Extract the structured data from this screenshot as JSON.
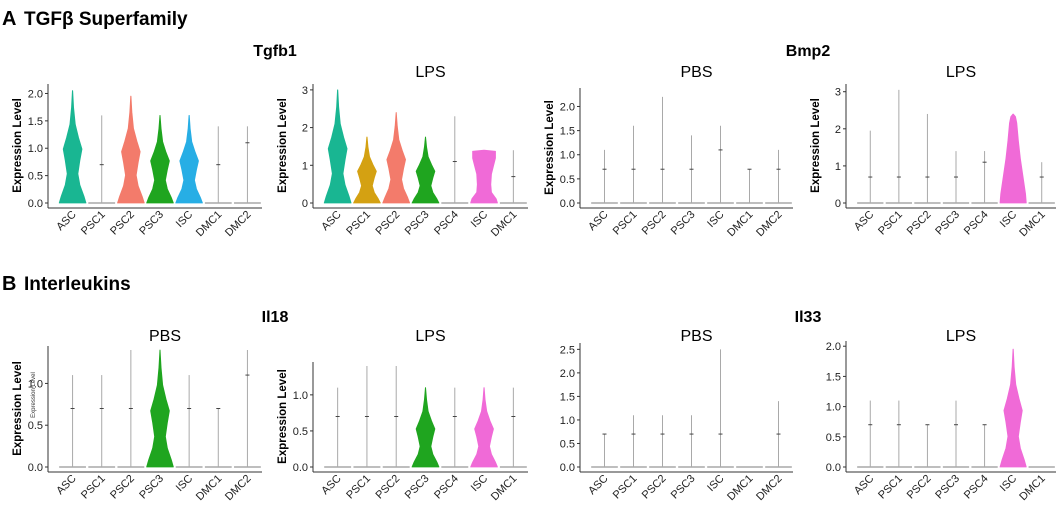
{
  "sections": [
    {
      "letter": "A",
      "title": "TGFβ Superfamily"
    },
    {
      "letter": "B",
      "title": "Interleukins"
    }
  ],
  "genes": [
    "Tgfb1",
    "Bmp2",
    "Il18",
    "Il33"
  ],
  "ylabel": "Expression Level",
  "ylabel_small": "Expression Level",
  "chart_data": [
    {
      "type": "violin",
      "gene": "Tgfb1",
      "title": "",
      "ylabel": "Expression Level",
      "ylim": [
        0,
        2.1
      ],
      "yticks": [
        "0.0",
        "0.5",
        "1.0",
        "1.5",
        "2.0"
      ],
      "ytick_values": [
        0,
        0.5,
        1,
        1.5,
        2
      ],
      "categories": [
        "ASC",
        "PSC1",
        "PSC2",
        "PSC3",
        "ISC",
        "DMC1",
        "DMC2"
      ],
      "colors": [
        "#19b692",
        "#b0b0b0",
        "#f37b6b",
        "#1fa51f",
        "#27aee5",
        "#b0b0b0",
        "#b0b0b0"
      ],
      "max": [
        2.05,
        1.6,
        1.95,
        1.6,
        1.6,
        1.4,
        1.4
      ],
      "median": [
        0.8,
        0.7,
        0.7,
        0.7,
        0.7,
        0.7,
        1.1
      ],
      "shape": [
        "full",
        "line",
        "full",
        "full",
        "full",
        "line",
        "line"
      ]
    },
    {
      "type": "violin",
      "gene": "Tgfb1",
      "title": "LPS",
      "ylabel": "Expression Level",
      "ylim": [
        0,
        3.05
      ],
      "yticks": [
        "0",
        "1",
        "2",
        "3"
      ],
      "ytick_values": [
        0,
        1,
        2,
        3
      ],
      "categories": [
        "ASC",
        "PSC1",
        "PSC2",
        "PSC3",
        "PSC4",
        "ISC",
        "DMC1"
      ],
      "colors": [
        "#19b692",
        "#d4a112",
        "#f37b6b",
        "#1fa51f",
        "#b0b0b0",
        "#f06ad7",
        "#b0b0b0"
      ],
      "max": [
        3.0,
        1.75,
        2.4,
        1.75,
        2.3,
        1.4,
        1.4
      ],
      "median": [
        1.0,
        0.7,
        0.8,
        0.7,
        1.1,
        0.7,
        0.7
      ],
      "shape": [
        "full",
        "full",
        "full",
        "full",
        "line",
        "block",
        "line"
      ]
    },
    {
      "type": "violin",
      "gene": "Bmp2",
      "title": "PBS",
      "ylabel": "Expression Level",
      "ylim": [
        0,
        2.3
      ],
      "yticks": [
        "0.0",
        "0.5",
        "1.0",
        "1.5",
        "2.0"
      ],
      "ytick_values": [
        0,
        0.5,
        1,
        1.5,
        2
      ],
      "categories": [
        "ASC",
        "PSC1",
        "PSC2",
        "PSC3",
        "ISC",
        "DMC1",
        "DMC2"
      ],
      "colors": [
        "#b0b0b0",
        "#b0b0b0",
        "#b0b0b0",
        "#b0b0b0",
        "#b0b0b0",
        "#b0b0b0",
        "#b0b0b0"
      ],
      "max": [
        1.1,
        1.6,
        2.2,
        1.4,
        1.6,
        0.7,
        1.1
      ],
      "median": [
        0.7,
        0.7,
        0.7,
        0.7,
        1.1,
        0.7,
        0.7
      ],
      "shape": [
        "line",
        "line",
        "line",
        "line",
        "line",
        "line",
        "line"
      ]
    },
    {
      "type": "violin",
      "gene": "Bmp2",
      "title": "LPS",
      "ylabel": "Expression Level",
      "ylim": [
        0,
        3.1
      ],
      "yticks": [
        "0",
        "1",
        "2",
        "3"
      ],
      "ytick_values": [
        0,
        1,
        2,
        3
      ],
      "categories": [
        "ASC",
        "PSC1",
        "PSC2",
        "PSC3",
        "PSC4",
        "ISC",
        "DMC1"
      ],
      "colors": [
        "#b0b0b0",
        "#b0b0b0",
        "#b0b0b0",
        "#b0b0b0",
        "#b0b0b0",
        "#f06ad7",
        "#b0b0b0"
      ],
      "max": [
        1.95,
        3.05,
        2.4,
        1.4,
        1.4,
        2.4,
        1.1
      ],
      "median": [
        0.7,
        0.7,
        0.7,
        0.7,
        1.1,
        0.7,
        0.7
      ],
      "shape": [
        "line",
        "line",
        "line",
        "line",
        "line",
        "hump",
        "line"
      ]
    },
    {
      "type": "violin",
      "gene": "Il18",
      "title": "PBS",
      "ylabel": "Expression Level",
      "ylim": [
        0,
        1.4
      ],
      "yticks": [
        "0.0",
        "0.5",
        "1.0"
      ],
      "ytick_values": [
        0,
        0.5,
        1
      ],
      "categories": [
        "ASC",
        "PSC1",
        "PSC2",
        "PSC3",
        "ISC",
        "DMC1",
        "DMC2"
      ],
      "colors": [
        "#b0b0b0",
        "#b0b0b0",
        "#b0b0b0",
        "#1fa51f",
        "#b0b0b0",
        "#b0b0b0",
        "#b0b0b0"
      ],
      "max": [
        1.1,
        1.1,
        1.4,
        1.4,
        1.1,
        0.7,
        1.4
      ],
      "median": [
        0.7,
        0.7,
        0.7,
        0.7,
        0.7,
        0.7,
        1.1
      ],
      "shape": [
        "line",
        "line",
        "line",
        "full",
        "line",
        "line",
        "line"
      ]
    },
    {
      "type": "violin",
      "gene": "Il18",
      "title": "LPS",
      "ylabel": "Expression Level",
      "ylim": [
        0,
        1.4
      ],
      "yticks": [
        "0.0",
        "0.5",
        "1.0"
      ],
      "ytick_values": [
        0,
        0.5,
        1
      ],
      "categories": [
        "ASC",
        "PSC1",
        "PSC2",
        "PSC3",
        "PSC4",
        "ISC",
        "DMC1"
      ],
      "colors": [
        "#b0b0b0",
        "#b0b0b0",
        "#b0b0b0",
        "#1fa51f",
        "#b0b0b0",
        "#f06ad7",
        "#b0b0b0"
      ],
      "max": [
        1.1,
        1.4,
        1.4,
        1.1,
        1.1,
        1.1,
        1.1
      ],
      "median": [
        0.7,
        0.7,
        0.7,
        0.7,
        0.7,
        0.7,
        0.7
      ],
      "shape": [
        "line",
        "line",
        "line",
        "full",
        "line",
        "full",
        "line"
      ]
    },
    {
      "type": "violin",
      "gene": "Il33",
      "title": "PBS",
      "ylabel": "",
      "ylim": [
        0,
        2.55
      ],
      "yticks": [
        "0.0",
        "0.5",
        "1.0",
        "1.5",
        "2.0",
        "2.5"
      ],
      "ytick_values": [
        0,
        0.5,
        1,
        1.5,
        2,
        2.5
      ],
      "categories": [
        "ASC",
        "PSC1",
        "PSC2",
        "PSC3",
        "ISC",
        "DMC1",
        "DMC2"
      ],
      "colors": [
        "#b0b0b0",
        "#b0b0b0",
        "#b0b0b0",
        "#b0b0b0",
        "#b0b0b0",
        "#b0b0b0",
        "#b0b0b0"
      ],
      "max": [
        0.7,
        1.1,
        1.1,
        1.1,
        2.5,
        0.0,
        1.4
      ],
      "median": [
        0.7,
        0.7,
        0.7,
        0.7,
        0.7,
        0.0,
        0.7
      ],
      "shape": [
        "line",
        "line",
        "line",
        "line",
        "line",
        "line",
        "line"
      ]
    },
    {
      "type": "violin",
      "gene": "Il33",
      "title": "LPS",
      "ylabel": "",
      "ylim": [
        0,
        2.02
      ],
      "yticks": [
        "0.0",
        "0.5",
        "1.0",
        "1.5",
        "2.0"
      ],
      "ytick_values": [
        0,
        0.5,
        1,
        1.5,
        2
      ],
      "categories": [
        "ASC",
        "PSC1",
        "PSC2",
        "PSC3",
        "PSC4",
        "ISC",
        "DMC1"
      ],
      "colors": [
        "#b0b0b0",
        "#b0b0b0",
        "#b0b0b0",
        "#b0b0b0",
        "#b0b0b0",
        "#f06ad7",
        "#b0b0b0"
      ],
      "max": [
        1.1,
        1.1,
        0.7,
        1.1,
        0.7,
        1.95,
        0.0
      ],
      "median": [
        0.7,
        0.7,
        0.7,
        0.7,
        0.7,
        0.7,
        0.0
      ],
      "shape": [
        "line",
        "line",
        "line",
        "line",
        "line",
        "full",
        "line"
      ]
    }
  ]
}
